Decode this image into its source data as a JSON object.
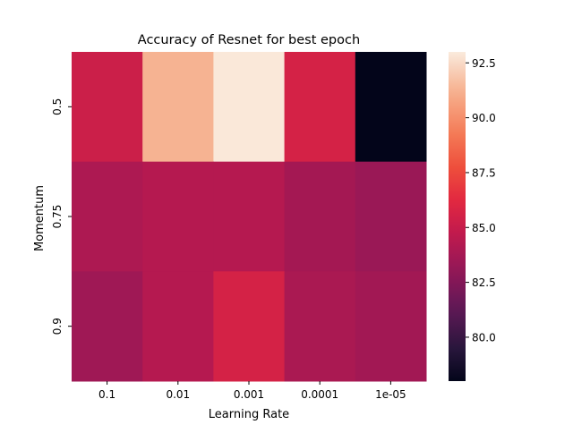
{
  "chart_data": {
    "type": "heatmap",
    "title": "Accuracy of Resnet for best epoch",
    "xlabel": "Learning Rate",
    "ylabel": "Momentum",
    "x_categories": [
      "0.1",
      "0.01",
      "0.001",
      "0.0001",
      "1e-05"
    ],
    "y_categories": [
      "0.5",
      "0.75",
      "0.9"
    ],
    "values": [
      [
        85.2,
        91.3,
        92.9,
        85.6,
        78.0
      ],
      [
        84.0,
        84.3,
        84.3,
        83.7,
        83.3
      ],
      [
        83.5,
        84.3,
        85.6,
        83.9,
        83.6
      ]
    ],
    "colorbar": {
      "vmin": 78.0,
      "vmax": 93.0,
      "ticks": [
        80.0,
        82.5,
        85.0,
        87.5,
        90.0,
        92.5
      ],
      "tick_labels": [
        "80.0",
        "82.5",
        "85.0",
        "87.5",
        "90.0",
        "92.5"
      ]
    },
    "colormap": "rocket",
    "grid": false
  }
}
